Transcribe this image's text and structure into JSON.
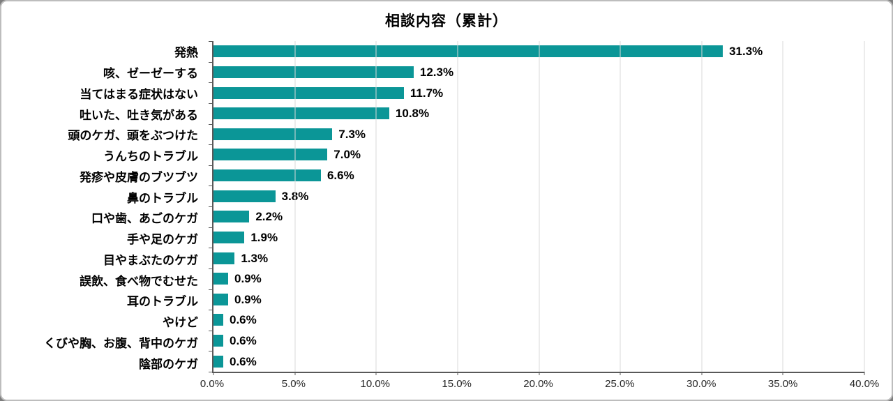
{
  "title": "相談内容（累計）",
  "chart_data": {
    "type": "bar",
    "orientation": "horizontal",
    "title": "相談内容（累計）",
    "categories": [
      "発熱",
      "咳、ゼーゼーする",
      "当てはまる症状はない",
      "吐いた、吐き気がある",
      "頭のケガ、頭をぶつけた",
      "うんちのトラブル",
      "発疹や皮膚のブツブツ",
      "鼻のトラブル",
      "口や歯、あごのケガ",
      "手や足のケガ",
      "目やまぶたのケガ",
      "誤飲、食べ物でむせた",
      "耳のトラブル",
      "やけど",
      "くびや胸、お腹、背中のケガ",
      "陰部のケガ"
    ],
    "values": [
      31.3,
      12.3,
      11.7,
      10.8,
      7.3,
      7.0,
      6.6,
      3.8,
      2.2,
      1.9,
      1.3,
      0.9,
      0.9,
      0.6,
      0.6,
      0.6
    ],
    "value_labels": [
      "31.3%",
      "12.3%",
      "11.7%",
      "10.8%",
      "7.3%",
      "7.0%",
      "6.6%",
      "3.8%",
      "2.2%",
      "1.9%",
      "1.3%",
      "0.9%",
      "0.9%",
      "0.6%",
      "0.6%",
      "0.6%"
    ],
    "x_ticks": [
      "0.0%",
      "5.0%",
      "10.0%",
      "15.0%",
      "20.0%",
      "25.0%",
      "30.0%",
      "35.0%",
      "40.0%"
    ],
    "xlim": [
      0,
      40
    ],
    "xlabel": "",
    "ylabel": "",
    "grid": true,
    "legend": false,
    "bar_color": "#0b9697",
    "gridline_color": "#d9d9d9",
    "axis_color": "#595959"
  }
}
